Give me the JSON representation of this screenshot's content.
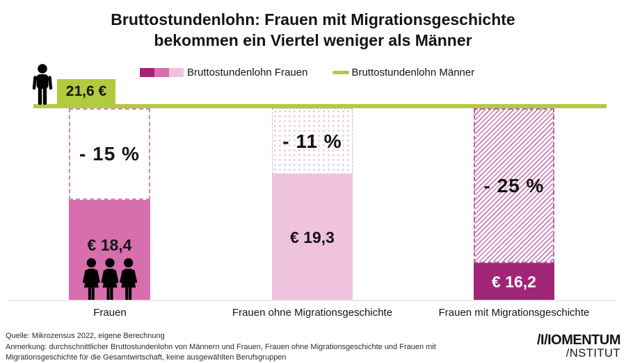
{
  "title": "Bruttostundenlohn: Frauen mit Migrationsgeschichte bekommen ein Viertel weniger als Männer",
  "colors": {
    "men_green": "#b2ca3d",
    "women_dark": "#a12577",
    "women_medium": "#d76fae",
    "women_light": "#efc2dd"
  },
  "legend": {
    "women_label": "Bruttostundenlohn Frauen",
    "men_label": "Bruttostundenlohn Männer"
  },
  "chart_data": {
    "type": "bar",
    "title": "Bruttostundenlohn: Frauen mit Migrationsgeschichte bekommen ein Viertel weniger als Männer",
    "categories": [
      "Frauen",
      "Frauen ohne Migrationsgeschichte",
      "Frauen mit Migrationsgeschichte"
    ],
    "values": [
      18.4,
      19.3,
      16.2
    ],
    "value_labels": [
      "€ 18,4",
      "€ 19,3",
      "€ 16,2"
    ],
    "gap_percent": [
      -15,
      -11,
      -25
    ],
    "gap_labels": [
      "- 15 %",
      "- 11 %",
      "- 25 %"
    ],
    "reference_line": {
      "name": "Bruttostundenlohn Männer",
      "value": 21.6,
      "label": "21,6 €"
    },
    "ylim": [
      14.9,
      21.6
    ],
    "grid": false,
    "legend_position": "top",
    "bar_fill_keys": [
      "women_medium",
      "women_light",
      "women_dark"
    ],
    "gap_styles": [
      "outline",
      "dots",
      "hatch"
    ]
  },
  "footer": {
    "line1": "Quelle: Mikrozensus 2022, eigene Berechnung",
    "line2": "Anmerkung: durchschnittlicher Bruttostundenlohn von Männern und Frauen, Frauen ohne Migrationsgeschichte und Frauen mit",
    "line3": "Migrationsgeschichte für die Gesamtwirtschaft, keine ausgewählten Berufsgruppen"
  },
  "logo": {
    "line1": "/I/IOMENTUM",
    "line2": "/NSTITUT"
  }
}
